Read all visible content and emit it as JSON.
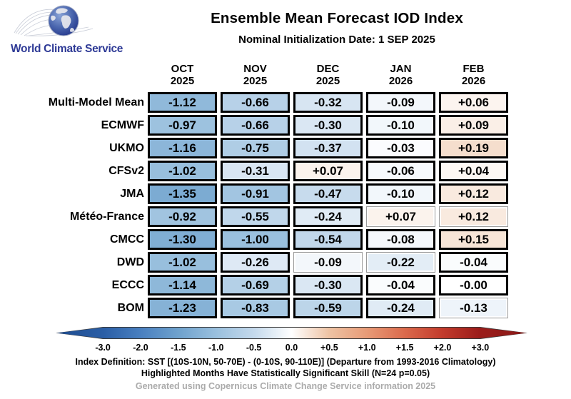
{
  "logo": {
    "text": "World Climate Service"
  },
  "header": {
    "title": "Ensemble Mean Forecast IOD Index",
    "subtitle": "Nominal Initialization Date: 1 SEP 2025"
  },
  "chart_data": {
    "type": "heatmap",
    "columns": [
      {
        "month": "OCT",
        "year": "2025"
      },
      {
        "month": "NOV",
        "year": "2025"
      },
      {
        "month": "DEC",
        "year": "2025"
      },
      {
        "month": "JAN",
        "year": "2026"
      },
      {
        "month": "FEB",
        "year": "2026"
      }
    ],
    "rows": [
      {
        "model": "Multi-Model Mean",
        "values": [
          "-1.12",
          "-0.66",
          "-0.32",
          "-0.09",
          "+0.06"
        ],
        "significant": [
          true,
          true,
          true,
          true,
          true
        ]
      },
      {
        "model": "ECMWF",
        "values": [
          "-0.97",
          "-0.66",
          "-0.30",
          "-0.10",
          "+0.09"
        ],
        "significant": [
          true,
          true,
          true,
          true,
          true
        ]
      },
      {
        "model": "UKMO",
        "values": [
          "-1.16",
          "-0.75",
          "-0.37",
          "-0.03",
          "+0.19"
        ],
        "significant": [
          true,
          true,
          true,
          true,
          true
        ]
      },
      {
        "model": "CFSv2",
        "values": [
          "-1.02",
          "-0.31",
          "+0.07",
          "-0.06",
          "+0.04"
        ],
        "significant": [
          true,
          true,
          true,
          true,
          true
        ]
      },
      {
        "model": "JMA",
        "values": [
          "-1.35",
          "-0.91",
          "-0.47",
          "-0.10",
          "+0.12"
        ],
        "significant": [
          true,
          true,
          true,
          true,
          true
        ]
      },
      {
        "model": "Météo-France",
        "values": [
          "-0.92",
          "-0.55",
          "-0.24",
          "+0.07",
          "+0.12"
        ],
        "significant": [
          true,
          true,
          true,
          false,
          false
        ]
      },
      {
        "model": "CMCC",
        "values": [
          "-1.30",
          "-1.00",
          "-0.54",
          "-0.08",
          "+0.15"
        ],
        "significant": [
          true,
          true,
          true,
          true,
          true
        ]
      },
      {
        "model": "DWD",
        "values": [
          "-1.02",
          "-0.26",
          "-0.09",
          "-0.22",
          "-0.04"
        ],
        "significant": [
          true,
          true,
          false,
          false,
          true
        ]
      },
      {
        "model": "ECCC",
        "values": [
          "-1.14",
          "-0.69",
          "-0.30",
          "-0.04",
          "-0.00"
        ],
        "significant": [
          true,
          true,
          true,
          true,
          true
        ]
      },
      {
        "model": "BOM",
        "values": [
          "-1.23",
          "-0.83",
          "-0.59",
          "-0.24",
          "-0.13"
        ],
        "significant": [
          true,
          true,
          true,
          true,
          false
        ]
      }
    ],
    "colormap_anchors": [
      [
        -3.0,
        "#2a5ea6"
      ],
      [
        -2.0,
        "#4a80c0"
      ],
      [
        -1.5,
        "#6fa2cd"
      ],
      [
        -1.0,
        "#9ac0de"
      ],
      [
        -0.5,
        "#c4d9ec"
      ],
      [
        -0.25,
        "#dfeaf5"
      ],
      [
        0.0,
        "#ffffff"
      ],
      [
        0.25,
        "#f2d3bd"
      ],
      [
        0.5,
        "#eec3a4"
      ],
      [
        1.0,
        "#e89b77"
      ],
      [
        1.5,
        "#db6a4c"
      ],
      [
        2.0,
        "#c33b2c"
      ],
      [
        3.0,
        "#9b1c1a"
      ]
    ],
    "colorbar": {
      "tick_labels": [
        "-3.0",
        "-2.0",
        "-1.5",
        "-1.0",
        "-0.5",
        "0.0",
        "+0.5",
        "+1.0",
        "+1.5",
        "+2.0",
        "+3.0"
      ],
      "tick_values": [
        -3,
        -2,
        -1.5,
        -1,
        -0.5,
        0,
        0.5,
        1,
        1.5,
        2,
        3
      ],
      "tip_left_color": "#1e4b8e",
      "tip_right_color": "#8a1a18"
    }
  },
  "footer": {
    "line1": "Index Definition: SST [(10S-10N, 50-70E) - (0-10S, 90-110E)] (Departure from 1993-2016 Climatology)",
    "line2": "Highlighted Months Have Statistically Significant Skill (N=24 p=0.05)",
    "line3": "Generated using Copernicus Climate Change Service information 2025"
  }
}
